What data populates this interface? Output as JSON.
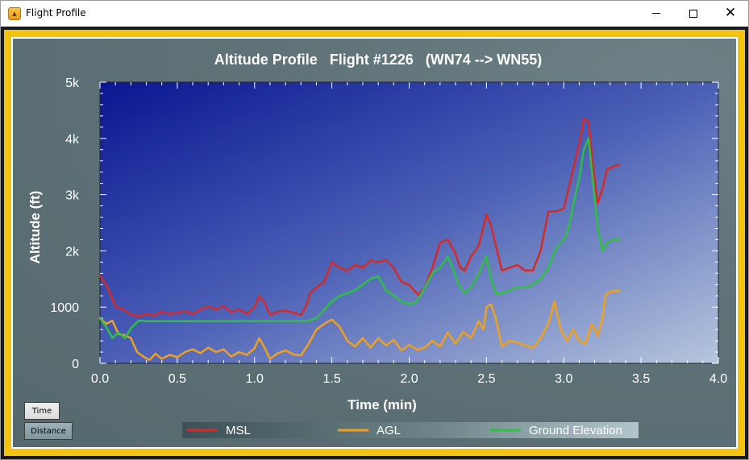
{
  "window": {
    "title": "Flight Profile",
    "icon": "app-icon",
    "controls": [
      "minimize",
      "maximize",
      "close"
    ]
  },
  "buttons": {
    "time_label": "Time",
    "distance_label": "Distance"
  },
  "colors": {
    "frame": "#f2c40f",
    "plot_top_left": "#0a1690",
    "plot_bottom_right": "#b6c6dc",
    "msl": "#d42a2a",
    "agl": "#f0a020",
    "ground": "#2fbf45"
  },
  "chart_data": {
    "type": "line",
    "title": "Altitude Profile   Flight #1226   (WN74 --> WN55)",
    "xlabel": "Time (min)",
    "ylabel": "Altitude (ft)",
    "xlim": [
      0,
      4.0
    ],
    "ylim": [
      0,
      5000
    ],
    "x_ticks": [
      0.0,
      0.5,
      1.0,
      1.5,
      2.0,
      2.5,
      3.0,
      3.5,
      4.0
    ],
    "x_tick_labels": [
      "0.0",
      "0.5",
      "1.0",
      "1.5",
      "2.0",
      "2.5",
      "3.0",
      "3.5",
      "4.0"
    ],
    "y_ticks": [
      0,
      1000,
      2000,
      3000,
      4000,
      5000
    ],
    "y_tick_labels": [
      "0",
      "1000",
      "2k",
      "3k",
      "4k",
      "5k"
    ],
    "legend_position": "bottom-center",
    "series": [
      {
        "name": "MSL",
        "color": "#d42a2a",
        "x": [
          0.0,
          0.05,
          0.1,
          0.15,
          0.2,
          0.25,
          0.3,
          0.35,
          0.4,
          0.45,
          0.5,
          0.55,
          0.6,
          0.65,
          0.7,
          0.75,
          0.8,
          0.85,
          0.9,
          0.95,
          1.0,
          1.03,
          1.06,
          1.1,
          1.15,
          1.2,
          1.25,
          1.3,
          1.33,
          1.36,
          1.4,
          1.45,
          1.5,
          1.55,
          1.6,
          1.65,
          1.7,
          1.75,
          1.8,
          1.85,
          1.9,
          1.95,
          2.0,
          2.03,
          2.06,
          2.1,
          2.15,
          2.2,
          2.25,
          2.3,
          2.33,
          2.36,
          2.4,
          2.45,
          2.5,
          2.53,
          2.56,
          2.6,
          2.65,
          2.7,
          2.75,
          2.8,
          2.85,
          2.9,
          2.95,
          3.0,
          3.03,
          3.06,
          3.1,
          3.13,
          3.16,
          3.19,
          3.22,
          3.25,
          3.28,
          3.32,
          3.36
        ],
        "values": [
          1560,
          1350,
          1010,
          960,
          870,
          840,
          880,
          850,
          920,
          880,
          900,
          930,
          880,
          960,
          1010,
          960,
          1020,
          910,
          960,
          880,
          1000,
          1200,
          1100,
          860,
          920,
          940,
          900,
          860,
          1000,
          1250,
          1350,
          1450,
          1800,
          1700,
          1650,
          1750,
          1700,
          1830,
          1800,
          1840,
          1700,
          1450,
          1400,
          1300,
          1220,
          1350,
          1700,
          2150,
          2200,
          1950,
          1700,
          1650,
          1900,
          2100,
          2650,
          2450,
          2100,
          1650,
          1700,
          1750,
          1650,
          1650,
          2000,
          2700,
          2700,
          2750,
          3100,
          3450,
          3900,
          4350,
          4300,
          3500,
          2850,
          3100,
          3450,
          3500,
          3530
        ]
      },
      {
        "name": "AGL",
        "color": "#f0a020",
        "x": [
          0.0,
          0.04,
          0.08,
          0.12,
          0.16,
          0.2,
          0.24,
          0.28,
          0.32,
          0.36,
          0.4,
          0.45,
          0.5,
          0.55,
          0.6,
          0.65,
          0.7,
          0.75,
          0.8,
          0.85,
          0.9,
          0.95,
          1.0,
          1.03,
          1.06,
          1.1,
          1.15,
          1.2,
          1.25,
          1.3,
          1.35,
          1.4,
          1.45,
          1.5,
          1.55,
          1.6,
          1.65,
          1.7,
          1.75,
          1.8,
          1.85,
          1.9,
          1.95,
          2.0,
          2.05,
          2.1,
          2.15,
          2.2,
          2.25,
          2.3,
          2.35,
          2.4,
          2.45,
          2.48,
          2.5,
          2.53,
          2.56,
          2.6,
          2.65,
          2.7,
          2.75,
          2.8,
          2.85,
          2.9,
          2.94,
          2.98,
          3.02,
          3.06,
          3.1,
          3.14,
          3.18,
          3.22,
          3.25,
          3.27,
          3.3,
          3.36
        ],
        "values": [
          810,
          700,
          760,
          520,
          500,
          450,
          200,
          120,
          60,
          170,
          80,
          150,
          110,
          200,
          250,
          180,
          280,
          200,
          250,
          120,
          200,
          150,
          270,
          450,
          300,
          80,
          180,
          230,
          160,
          140,
          350,
          600,
          700,
          780,
          650,
          400,
          300,
          450,
          280,
          450,
          320,
          420,
          230,
          330,
          240,
          280,
          400,
          300,
          550,
          350,
          560,
          450,
          750,
          600,
          1000,
          1050,
          800,
          300,
          400,
          370,
          320,
          280,
          450,
          700,
          1100,
          600,
          400,
          600,
          400,
          350,
          700,
          500,
          800,
          1200,
          1280,
          1290
        ]
      },
      {
        "name": "Ground Elevation",
        "color": "#2fbf45",
        "x": [
          0.0,
          0.04,
          0.08,
          0.12,
          0.16,
          0.2,
          0.25,
          0.3,
          0.4,
          0.5,
          0.6,
          0.7,
          0.8,
          0.9,
          1.0,
          1.1,
          1.2,
          1.3,
          1.35,
          1.4,
          1.45,
          1.5,
          1.55,
          1.6,
          1.65,
          1.7,
          1.75,
          1.8,
          1.85,
          1.9,
          1.95,
          2.0,
          2.05,
          2.1,
          2.15,
          2.2,
          2.25,
          2.28,
          2.32,
          2.36,
          2.4,
          2.45,
          2.5,
          2.53,
          2.56,
          2.6,
          2.65,
          2.7,
          2.75,
          2.8,
          2.85,
          2.9,
          2.95,
          3.0,
          3.03,
          3.06,
          3.1,
          3.13,
          3.16,
          3.19,
          3.22,
          3.25,
          3.28,
          3.32,
          3.36
        ],
        "values": [
          800,
          650,
          450,
          550,
          450,
          620,
          760,
          750,
          750,
          750,
          750,
          750,
          750,
          750,
          750,
          750,
          750,
          750,
          760,
          800,
          950,
          1100,
          1200,
          1250,
          1300,
          1400,
          1500,
          1550,
          1300,
          1200,
          1100,
          1050,
          1100,
          1350,
          1600,
          1700,
          1900,
          1700,
          1400,
          1250,
          1350,
          1600,
          1900,
          1500,
          1250,
          1250,
          1300,
          1350,
          1350,
          1400,
          1500,
          1700,
          2050,
          2200,
          2400,
          2800,
          3300,
          3800,
          4000,
          3200,
          2400,
          2000,
          2150,
          2200,
          2200
        ]
      }
    ]
  }
}
